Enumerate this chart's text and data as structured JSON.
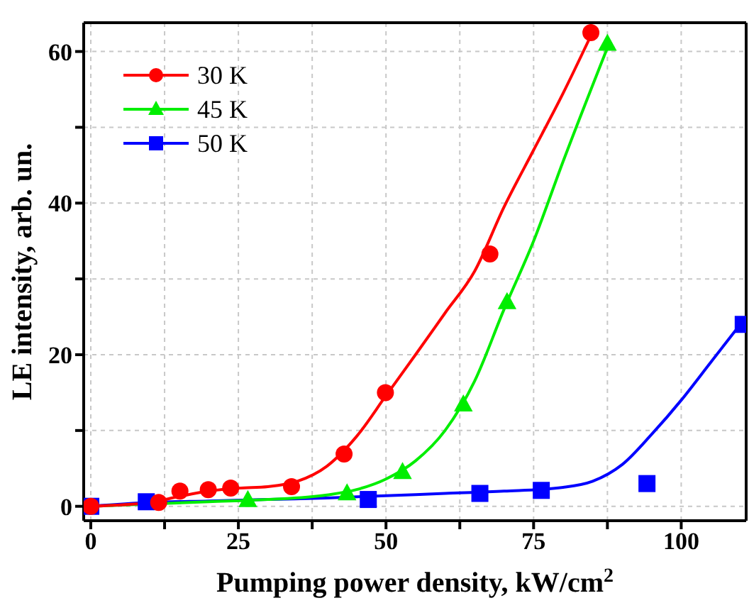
{
  "chart_data": {
    "type": "scatter",
    "xlabel": "Pumping power density, kW/cm$^{2}$",
    "ylabel": "LE intensity, arb. un.",
    "xlim": [
      -1.2,
      111
    ],
    "ylim": [
      -1.9,
      63.8
    ],
    "xticks": [
      0,
      {
        "value": 12.5,
        "label": null
      },
      25,
      {
        "value": 37.5,
        "label": null
      },
      50,
      {
        "value": 62.5,
        "label": null
      },
      75,
      {
        "value": 87.5,
        "label": null
      },
      100
    ],
    "yticks": [
      0,
      {
        "value": 10,
        "label": null
      },
      20,
      {
        "value": 30,
        "label": null
      },
      40,
      {
        "value": 50,
        "label": null
      },
      60
    ],
    "grid": true,
    "legend": "top left",
    "line_style": "solid",
    "series": [
      {
        "name": "30 K",
        "marker": "circle",
        "color": "#ff0000",
        "x": [
          0,
          11.5,
          15.1,
          19.9,
          23.7,
          34,
          42.9,
          49.9,
          67.6,
          84.7
        ],
        "values": [
          0,
          0.5,
          2,
          2.2,
          2.4,
          2.6,
          6.9,
          15,
          33.3,
          62.5
        ]
      },
      {
        "name": "45 K",
        "marker": "triangle",
        "color": "#00ee00",
        "x": [
          26.6,
          43.4,
          52.8,
          63.1,
          70.5,
          87.5
        ],
        "values": [
          0.8,
          1.7,
          4.5,
          13.4,
          26.9,
          61
        ]
      },
      {
        "name": "50 K",
        "marker": "square",
        "color": "#0000ff",
        "x": [
          0,
          9.4,
          47,
          65.9,
          76.3,
          94.2,
          110.5
        ],
        "values": [
          0,
          0.6,
          0.9,
          1.7,
          2.1,
          3,
          24
        ]
      },
      {
        "type": "line",
        "color": "#ff0000",
        "x": [
          0,
          10,
          15,
          20,
          25,
          30,
          35,
          40,
          45,
          50,
          55,
          60,
          65,
          70,
          75,
          80,
          84.4
        ],
        "values": [
          0,
          0.5,
          1.3,
          2,
          2.4,
          2.6,
          3.3,
          5.3,
          9.2,
          14.6,
          20,
          25.5,
          31,
          39.5,
          47,
          54.5,
          61.6
        ]
      },
      {
        "type": "line",
        "color": "#00ee00",
        "x": [
          0,
          20,
          30,
          40,
          45,
          50,
          55,
          60,
          65,
          70,
          75,
          80,
          87.5
        ],
        "values": [
          0,
          0.6,
          0.9,
          1.5,
          2.2,
          3.6,
          6,
          10,
          16.5,
          26,
          35,
          45.5,
          60.5
        ]
      },
      {
        "type": "line",
        "color": "#0000ff",
        "x": [
          0,
          10,
          20,
          30,
          40,
          50,
          60,
          70,
          80,
          85,
          90,
          95,
          100,
          105,
          110
        ],
        "values": [
          0,
          0.5,
          0.7,
          0.9,
          1.1,
          1.4,
          1.7,
          2,
          2.5,
          3.3,
          5.5,
          9.5,
          14,
          19,
          24
        ]
      }
    ]
  }
}
